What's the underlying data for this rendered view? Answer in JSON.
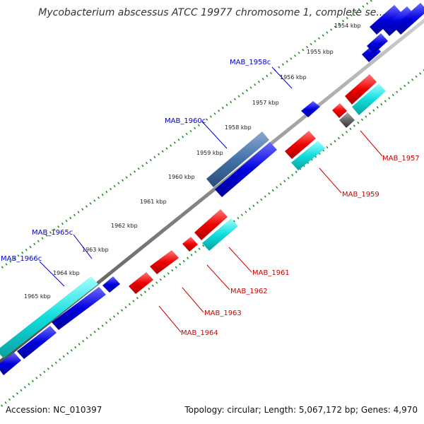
{
  "title": "Mycobacterium abscessus ATCC 19977 chromosome 1, complete se...",
  "accession": "Accession: NC_010397",
  "summary": "Topology: circular; Length: 5,067,172 bp; Genes: 4,970",
  "colors": {
    "backbone": "#909090",
    "tick_dots": "#118811",
    "forward_gene": "#0000dd",
    "forward_gene_dark": "#4472a8",
    "reverse_gene": "#ee0000",
    "reverse_gene_alt": "#11dddd",
    "pseudo_gene": "#666666",
    "forward_label": "#0000cc",
    "reverse_label": "#cc0000"
  },
  "ticks": [
    "1954 kbp",
    "1955 kbp",
    "1956 kbp",
    "1957 kbp",
    "1958 kbp",
    "1959 kbp",
    "1960 kbp",
    "1961 kbp",
    "1962 kbp",
    "1963 kbp",
    "1964 kbp",
    "1965 kbp"
  ],
  "forward_labels": [
    "MAB_1958c",
    "MAB_1960c",
    "MAB_1965c",
    "MAB_1966c"
  ],
  "reverse_labels": [
    "MAB_1957",
    "MAB_1959",
    "MAB_1961",
    "MAB_1962",
    "MAB_1963",
    "MAB_1964"
  ]
}
